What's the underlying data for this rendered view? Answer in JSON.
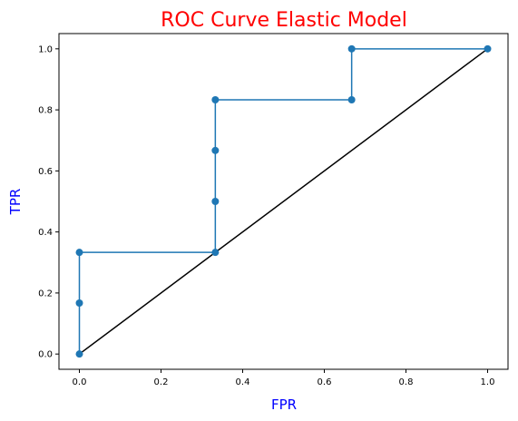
{
  "chart_data": {
    "type": "line",
    "title": "ROC Curve Elastic Model",
    "title_color": "#ff0000",
    "xlabel": "FPR",
    "ylabel": "TPR",
    "label_color": "#0000ff",
    "xlim": [
      -0.05,
      1.05
    ],
    "ylim": [
      -0.05,
      1.05
    ],
    "xticks": [
      0.0,
      0.2,
      0.4,
      0.6,
      0.8,
      1.0
    ],
    "yticks": [
      0.0,
      0.2,
      0.4,
      0.6,
      0.8,
      1.0
    ],
    "xtick_labels": [
      "0.0",
      "0.2",
      "0.4",
      "0.6",
      "0.8",
      "1.0"
    ],
    "ytick_labels": [
      "0.0",
      "0.2",
      "0.4",
      "0.6",
      "0.8",
      "1.0"
    ],
    "grid": false,
    "series": [
      {
        "color": "#1f77b4",
        "markers": true,
        "x": [
          0.0,
          0.0,
          0.0,
          0.333,
          0.333,
          0.333,
          0.333,
          0.667,
          0.667,
          1.0
        ],
        "y": [
          0.0,
          0.167,
          0.333,
          0.333,
          0.5,
          0.667,
          0.833,
          0.833,
          1.0,
          1.0
        ]
      },
      {
        "color": "#000000",
        "markers": false,
        "x": [
          0.0,
          1.0
        ],
        "y": [
          0.0,
          1.0
        ]
      }
    ]
  }
}
